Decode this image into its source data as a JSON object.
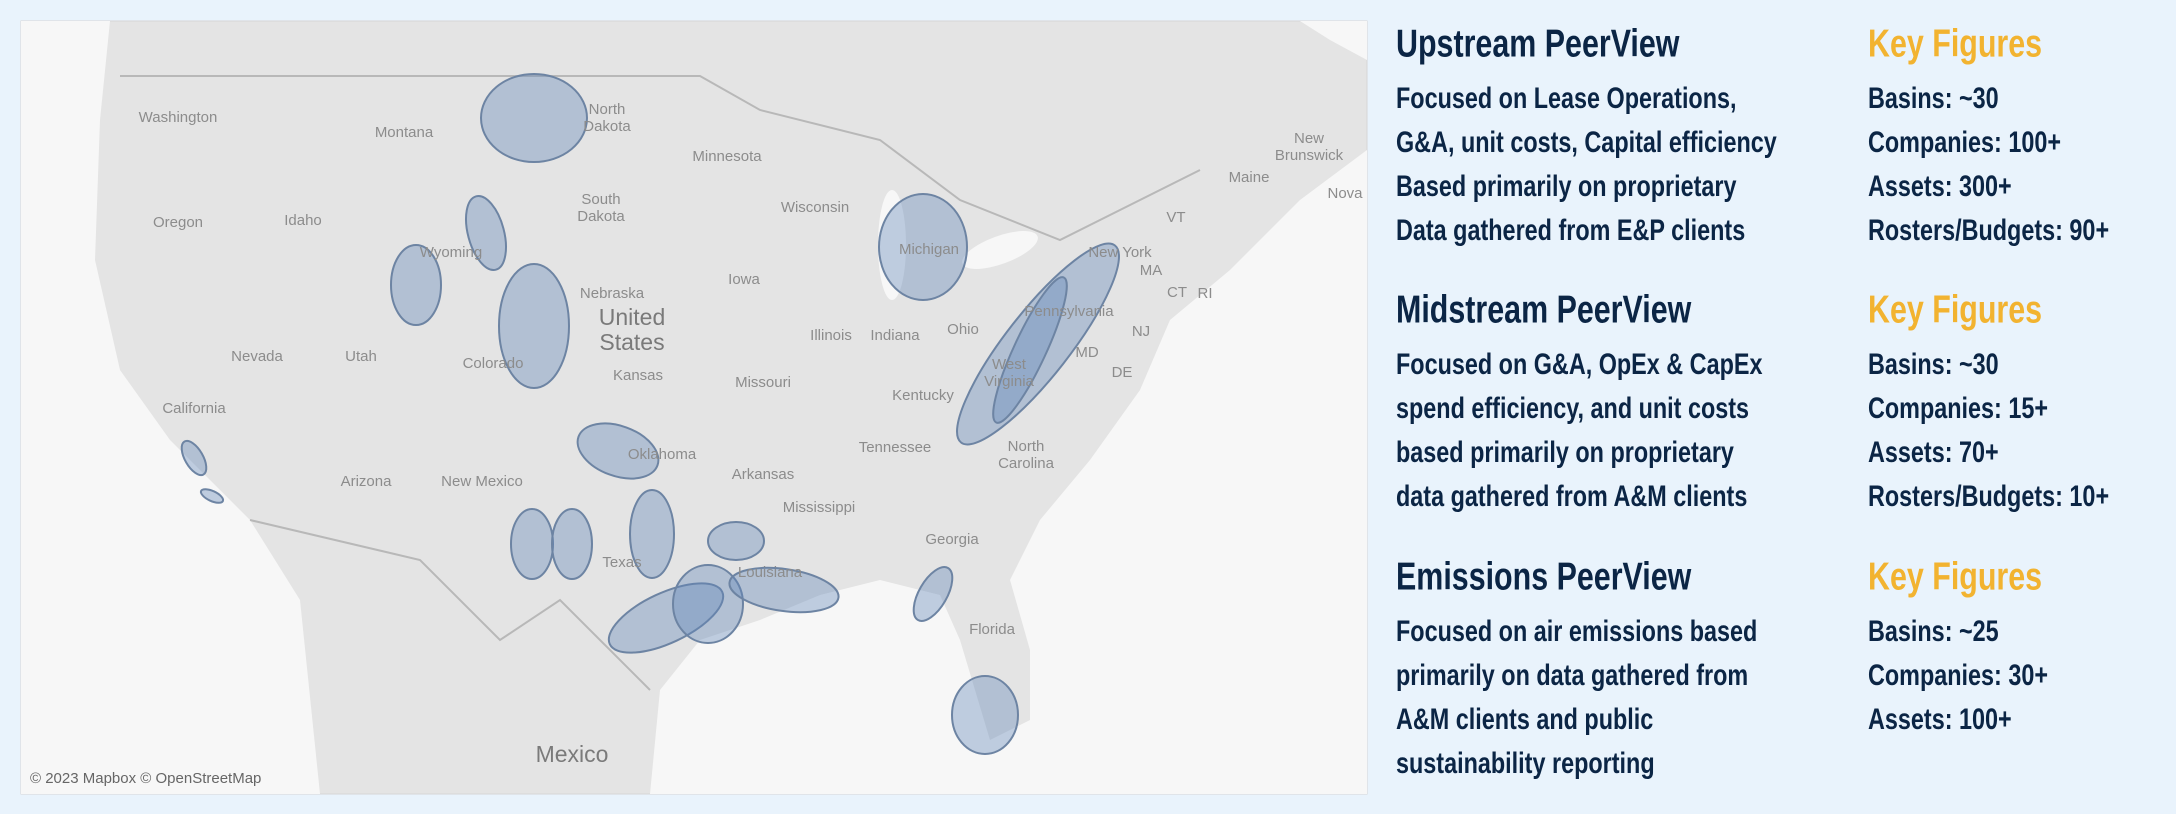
{
  "map": {
    "labels": [
      "Washington",
      "Montana",
      [
        "North",
        "Dakota"
      ],
      "Minnesota",
      "Oregon",
      "Idaho",
      "Wyoming",
      [
        "South",
        "Dakota"
      ],
      "Wisconsin",
      "Michigan",
      "New York",
      "VT",
      "Maine",
      [
        "New",
        "Brunswick"
      ],
      "Nova",
      "MA",
      "CT",
      "RI",
      "Pennsylvania",
      "NJ",
      "Nebraska",
      "Iowa",
      "Illinois",
      "Indiana",
      "Ohio",
      [
        "United",
        "States"
      ],
      "Nevada",
      "Utah",
      "Colorado",
      "Kansas",
      "Missouri",
      "Kentucky",
      [
        "West",
        "Virginia"
      ],
      "MD",
      "DE",
      "California",
      "Arizona",
      "New Mexico",
      "Oklahoma",
      "Arkansas",
      "Tennessee",
      [
        "North",
        "Carolina"
      ],
      "Mississippi",
      "Georgia",
      "Texas",
      "Louisiana",
      "Florida",
      "Mexico"
    ],
    "attribution": "© 2023 Mapbox © OpenStreetMap"
  },
  "sections": [
    {
      "title": "Upstream PeerView",
      "description": [
        "Focused on Lease Operations,",
        "G&A, unit costs, Capital efficiency",
        "Based primarily on proprietary",
        "Data gathered from E&P clients"
      ],
      "key_figures_title": "Key Figures",
      "key_figures": [
        "Basins: ~30",
        "Companies: 100+",
        "Assets: 300+",
        "Rosters/Budgets: 90+"
      ]
    },
    {
      "title": "Midstream PeerView",
      "description": [
        "Focused on G&A, OpEx & CapEx",
        "spend efficiency, and unit costs",
        "based primarily on proprietary",
        "data gathered from A&M clients"
      ],
      "key_figures_title": "Key Figures",
      "key_figures": [
        "Basins: ~30",
        "Companies: 15+",
        "Assets: 70+",
        "Rosters/Budgets: 10+"
      ]
    },
    {
      "title": "Emissions PeerView",
      "description": [
        "Focused on air emissions based",
        "primarily on data gathered from",
        "A&M clients and public",
        "sustainability reporting"
      ],
      "key_figures_title": "Key Figures",
      "key_figures": [
        "Basins: ~25",
        "Companies: 30+",
        "Assets: 100+"
      ]
    }
  ]
}
